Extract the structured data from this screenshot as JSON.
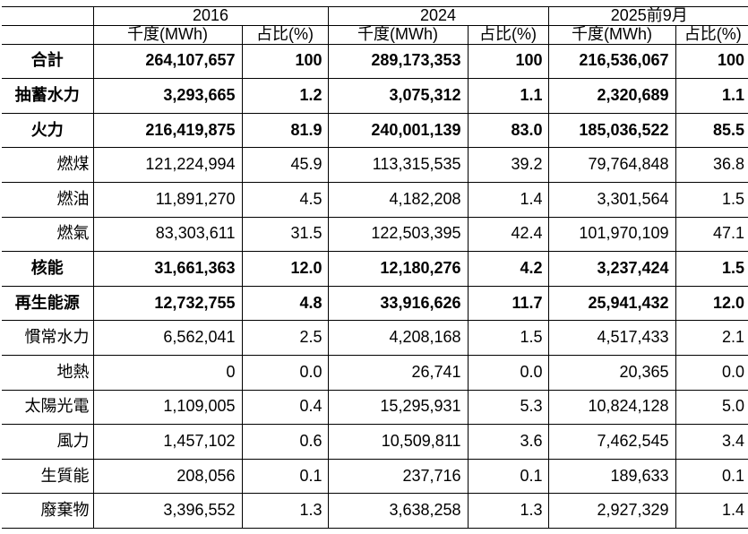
{
  "table": {
    "year_groups": [
      {
        "label": "2016"
      },
      {
        "label": "2024"
      },
      {
        "label": "2025前9月"
      }
    ],
    "subheaders": {
      "mwh": "千度(MWh)",
      "pct": "占比(%)"
    },
    "rows": [
      {
        "label": "合計",
        "style": "main",
        "values": [
          "264,107,657",
          "100",
          "289,173,353",
          "100",
          "216,536,067",
          "100"
        ]
      },
      {
        "label": "抽蓄水力",
        "style": "main",
        "values": [
          "3,293,665",
          "1.2",
          "3,075,312",
          "1.1",
          "2,320,689",
          "1.1"
        ]
      },
      {
        "label": "火力",
        "style": "main",
        "values": [
          "216,419,875",
          "81.9",
          "240,001,139",
          "83.0",
          "185,036,522",
          "85.5"
        ]
      },
      {
        "label": "燃煤",
        "style": "sub",
        "values": [
          "121,224,994",
          "45.9",
          "113,315,535",
          "39.2",
          "79,764,848",
          "36.8"
        ]
      },
      {
        "label": "燃油",
        "style": "sub",
        "values": [
          "11,891,270",
          "4.5",
          "4,182,208",
          "1.4",
          "3,301,564",
          "1.5"
        ]
      },
      {
        "label": "燃氣",
        "style": "sub",
        "values": [
          "83,303,611",
          "31.5",
          "122,503,395",
          "42.4",
          "101,970,109",
          "47.1"
        ]
      },
      {
        "label": "核能",
        "style": "main",
        "values": [
          "31,661,363",
          "12.0",
          "12,180,276",
          "4.2",
          "3,237,424",
          "1.5"
        ]
      },
      {
        "label": "再生能源",
        "style": "main",
        "values": [
          "12,732,755",
          "4.8",
          "33,916,626",
          "11.7",
          "25,941,432",
          "12.0"
        ]
      },
      {
        "label": "慣常水力",
        "style": "sub",
        "values": [
          "6,562,041",
          "2.5",
          "4,208,168",
          "1.5",
          "4,517,433",
          "2.1"
        ]
      },
      {
        "label": "地熱",
        "style": "sub",
        "values": [
          "0",
          "0.0",
          "26,741",
          "0.0",
          "20,365",
          "0.0"
        ]
      },
      {
        "label": "太陽光電",
        "style": "sub",
        "values": [
          "1,109,005",
          "0.4",
          "15,295,931",
          "5.3",
          "10,824,128",
          "5.0"
        ]
      },
      {
        "label": "風力",
        "style": "sub",
        "values": [
          "1,457,102",
          "0.6",
          "10,509,811",
          "3.6",
          "7,462,545",
          "3.4"
        ]
      },
      {
        "label": "生質能",
        "style": "sub",
        "values": [
          "208,056",
          "0.1",
          "237,716",
          "0.1",
          "189,633",
          "0.1"
        ]
      },
      {
        "label": "廢棄物",
        "style": "sub",
        "values": [
          "3,396,552",
          "1.3",
          "3,638,258",
          "1.3",
          "2,927,329",
          "1.4"
        ]
      }
    ]
  },
  "chart_data": {
    "type": "table",
    "column_groups": [
      "2016",
      "2024",
      "2025前9月"
    ],
    "columns": [
      "千度(MWh)",
      "占比(%)",
      "千度(MWh)",
      "占比(%)",
      "千度(MWh)",
      "占比(%)"
    ],
    "rows": [
      {
        "category": "合計",
        "values": [
          264107657,
          100,
          289173353,
          100,
          216536067,
          100
        ]
      },
      {
        "category": "抽蓄水力",
        "values": [
          3293665,
          1.2,
          3075312,
          1.1,
          2320689,
          1.1
        ]
      },
      {
        "category": "火力",
        "values": [
          216419875,
          81.9,
          240001139,
          83.0,
          185036522,
          85.5
        ]
      },
      {
        "category": "燃煤",
        "values": [
          121224994,
          45.9,
          113315535,
          39.2,
          79764848,
          36.8
        ]
      },
      {
        "category": "燃油",
        "values": [
          11891270,
          4.5,
          4182208,
          1.4,
          3301564,
          1.5
        ]
      },
      {
        "category": "燃氣",
        "values": [
          83303611,
          31.5,
          122503395,
          42.4,
          101970109,
          47.1
        ]
      },
      {
        "category": "核能",
        "values": [
          31661363,
          12.0,
          12180276,
          4.2,
          3237424,
          1.5
        ]
      },
      {
        "category": "再生能源",
        "values": [
          12732755,
          4.8,
          33916626,
          11.7,
          25941432,
          12.0
        ]
      },
      {
        "category": "慣常水力",
        "values": [
          6562041,
          2.5,
          4208168,
          1.5,
          4517433,
          2.1
        ]
      },
      {
        "category": "地熱",
        "values": [
          0,
          0.0,
          26741,
          0.0,
          20365,
          0.0
        ]
      },
      {
        "category": "太陽光電",
        "values": [
          1109005,
          0.4,
          15295931,
          5.3,
          10824128,
          5.0
        ]
      },
      {
        "category": "風力",
        "values": [
          1457102,
          0.6,
          10509811,
          3.6,
          7462545,
          3.4
        ]
      },
      {
        "category": "生質能",
        "values": [
          208056,
          0.1,
          237716,
          0.1,
          189633,
          0.1
        ]
      },
      {
        "category": "廢棄物",
        "values": [
          3396552,
          1.3,
          3638258,
          1.3,
          2927329,
          1.4
        ]
      }
    ],
    "layout": {
      "grid": true,
      "bold_rows": [
        "合計",
        "抽蓄水力",
        "火力",
        "核能",
        "再生能源"
      ]
    }
  }
}
